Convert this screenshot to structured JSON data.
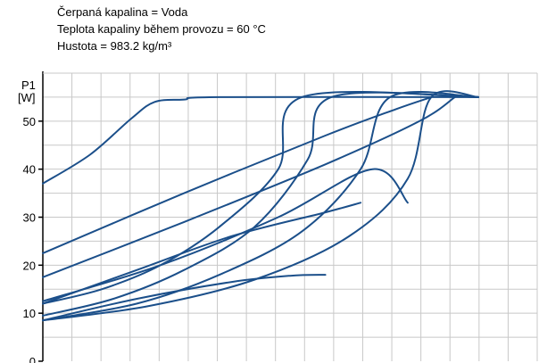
{
  "info_lines": [
    "Čerpaná kapalina = Voda",
    "Teplota kapaliny během provozu = 60 °C",
    "Hustota = 983.2 kg/m³"
  ],
  "colors": {
    "curve": "#1b4f8a",
    "grid": "#c8c8c8",
    "axis": "#000000"
  },
  "chart_data": {
    "type": "line",
    "ylabel": [
      "P1",
      "[W]"
    ],
    "ylim": [
      0,
      60
    ],
    "yticks": [
      0,
      10,
      20,
      30,
      40,
      50
    ],
    "xlim": [
      0,
      4.2
    ],
    "grid": true,
    "series": [
      {
        "x": [
          0,
          0.4,
          0.75,
          0.95,
          1.2,
          1.5,
          3.7
        ],
        "values": [
          37,
          43,
          50.5,
          54,
          54.5,
          55,
          55
        ]
      },
      {
        "x": [
          0,
          0.5,
          1.0,
          1.5,
          2.0,
          2.2,
          3.7
        ],
        "values": [
          12,
          15,
          20,
          28,
          40,
          55,
          55
        ]
      },
      {
        "x": [
          0,
          0.6,
          1.2,
          1.8,
          2.25,
          2.45,
          3.7
        ],
        "values": [
          9.5,
          13,
          19,
          28,
          42,
          55,
          55
        ]
      },
      {
        "x": [
          0,
          0.8,
          1.5,
          2.2,
          2.7,
          2.95,
          3.7
        ],
        "values": [
          8.5,
          12,
          18,
          27,
          40,
          55,
          55
        ]
      },
      {
        "x": [
          0,
          0.9,
          1.8,
          2.6,
          3.1,
          3.3,
          3.7
        ],
        "values": [
          8.5,
          11.5,
          17,
          26,
          38,
          55,
          55
        ]
      },
      {
        "x": [
          0,
          1.2,
          2.4,
          3.0,
          3.3
        ],
        "values": [
          22.5,
          35,
          47,
          52.5,
          55
        ]
      },
      {
        "x": [
          0,
          1.2,
          2.4,
          3.2,
          3.5
        ],
        "values": [
          17.5,
          29,
          41,
          50,
          55
        ]
      },
      {
        "x": [
          0,
          1.0,
          2.0,
          2.8,
          3.1
        ],
        "values": [
          12.5,
          20,
          30,
          40,
          33
        ]
      },
      {
        "x": [
          0,
          0.8,
          1.6,
          2.1,
          2.4
        ],
        "values": [
          8.5,
          13,
          16.5,
          17.8,
          18
        ]
      },
      {
        "x": [
          0,
          0.8,
          1.6,
          2.4,
          2.7
        ],
        "values": [
          12,
          19,
          26,
          31,
          33
        ]
      }
    ]
  }
}
